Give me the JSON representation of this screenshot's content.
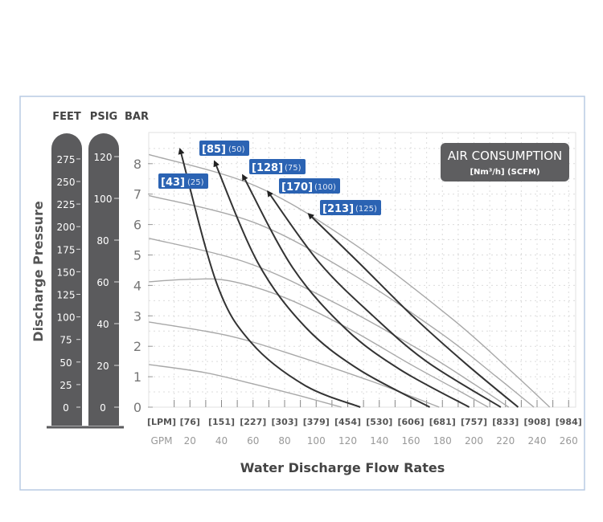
{
  "chart_data": {
    "type": "line",
    "title": "",
    "xlabel": "Water Discharge Flow Rates",
    "ylabel": "Discharge Pressure",
    "scale_headers": [
      "FEET",
      "PSIG",
      "BAR"
    ],
    "x_unit_primary": "[LPM]",
    "x_unit_secondary": "GPM",
    "x_ticks_gpm": [
      20,
      40,
      60,
      80,
      100,
      120,
      140,
      160,
      180,
      200,
      220,
      240,
      260
    ],
    "x_ticks_lpm": [
      "[76]",
      "[151]",
      "[227]",
      "[303]",
      "[379]",
      "[454]",
      "[530]",
      "[606]",
      "[681]",
      "[757]",
      "[833]",
      "[908]",
      "[984]"
    ],
    "y_ticks_bar": [
      0,
      1,
      2,
      3,
      4,
      5,
      6,
      7,
      8
    ],
    "y_ticks_feet": [
      0,
      25,
      50,
      75,
      100,
      125,
      150,
      175,
      200,
      225,
      250,
      275
    ],
    "y_ticks_psig": [
      0,
      20,
      40,
      60,
      80,
      100,
      120
    ],
    "grid": true,
    "legend": {
      "title": "AIR CONSUMPTION",
      "subtitle": "[Nm³/h] (SCFM)",
      "placement": "top-right"
    },
    "pressure_curves": [
      {
        "points": [
          [
            -6,
            8.3
          ],
          [
            62,
            7.26
          ],
          [
            124,
            5.36
          ],
          [
            186,
            2.91
          ],
          [
            223,
            1.21
          ],
          [
            248,
            0
          ]
        ]
      },
      {
        "points": [
          [
            -6,
            6.95
          ],
          [
            60,
            6.08
          ],
          [
            119,
            4.49
          ],
          [
            179,
            2.43
          ],
          [
            214,
            1.01
          ],
          [
            238,
            0
          ]
        ]
      },
      {
        "points": [
          [
            -6,
            5.55
          ],
          [
            56,
            4.75
          ],
          [
            111,
            3.45
          ],
          [
            167,
            1.84
          ],
          [
            200,
            0.76
          ],
          [
            222,
            0
          ]
        ]
      },
      {
        "points": [
          [
            -6,
            4.12
          ],
          [
            20,
            4.2
          ],
          [
            45,
            4.15
          ],
          [
            80,
            3.6
          ],
          [
            120,
            2.6
          ],
          [
            160,
            1.4
          ],
          [
            190,
            0.55
          ],
          [
            209,
            0
          ]
        ]
      },
      {
        "points": [
          [
            -6,
            2.8
          ],
          [
            45,
            2.34
          ],
          [
            89,
            1.66
          ],
          [
            134,
            0.87
          ],
          [
            160,
            0.36
          ],
          [
            178,
            0
          ]
        ]
      },
      {
        "points": [
          [
            -6,
            1.4
          ],
          [
            29,
            1.14
          ],
          [
            58,
            0.79
          ],
          [
            87,
            0.41
          ],
          [
            104,
            0.17
          ],
          [
            116,
            0
          ]
        ]
      }
    ],
    "air_consumption_curves": [
      {
        "nm3h": "[43]",
        "scfm": "(25)",
        "points": [
          [
            14,
            8.42
          ],
          [
            37,
            4.06
          ],
          [
            59,
            2.11
          ],
          [
            93,
            0.71
          ],
          [
            128,
            0
          ]
        ]
      },
      {
        "nm3h": "[85]",
        "scfm": "(50)",
        "points": [
          [
            36,
            8.02
          ],
          [
            63,
            4.75
          ],
          [
            93,
            2.64
          ],
          [
            127,
            1.24
          ],
          [
            172,
            0
          ]
        ]
      },
      {
        "nm3h": "[128]",
        "scfm": "(75)",
        "points": [
          [
            54,
            7.57
          ],
          [
            85,
            4.59
          ],
          [
            119,
            2.56
          ],
          [
            153,
            1.24
          ],
          [
            197,
            0
          ]
        ]
      },
      {
        "nm3h": "[170]",
        "scfm": "(100)",
        "points": [
          [
            70,
            7.04
          ],
          [
            102,
            4.75
          ],
          [
            136,
            3.0
          ],
          [
            170,
            1.5
          ],
          [
            217,
            0
          ]
        ]
      },
      {
        "nm3h": "[213]",
        "scfm": "(125)",
        "points": [
          [
            96,
            6.31
          ],
          [
            127,
            4.75
          ],
          [
            161,
            3.0
          ],
          [
            195,
            1.42
          ],
          [
            228,
            0
          ]
        ]
      }
    ],
    "colors": {
      "pressure_curve": "#a8a8a8",
      "air_curve": "#333333",
      "label_bg": "#2b63b3",
      "scale_bar": "#5b5b5d",
      "legend_bg": "#5e5e60",
      "frame": "#b9cbe3"
    }
  }
}
